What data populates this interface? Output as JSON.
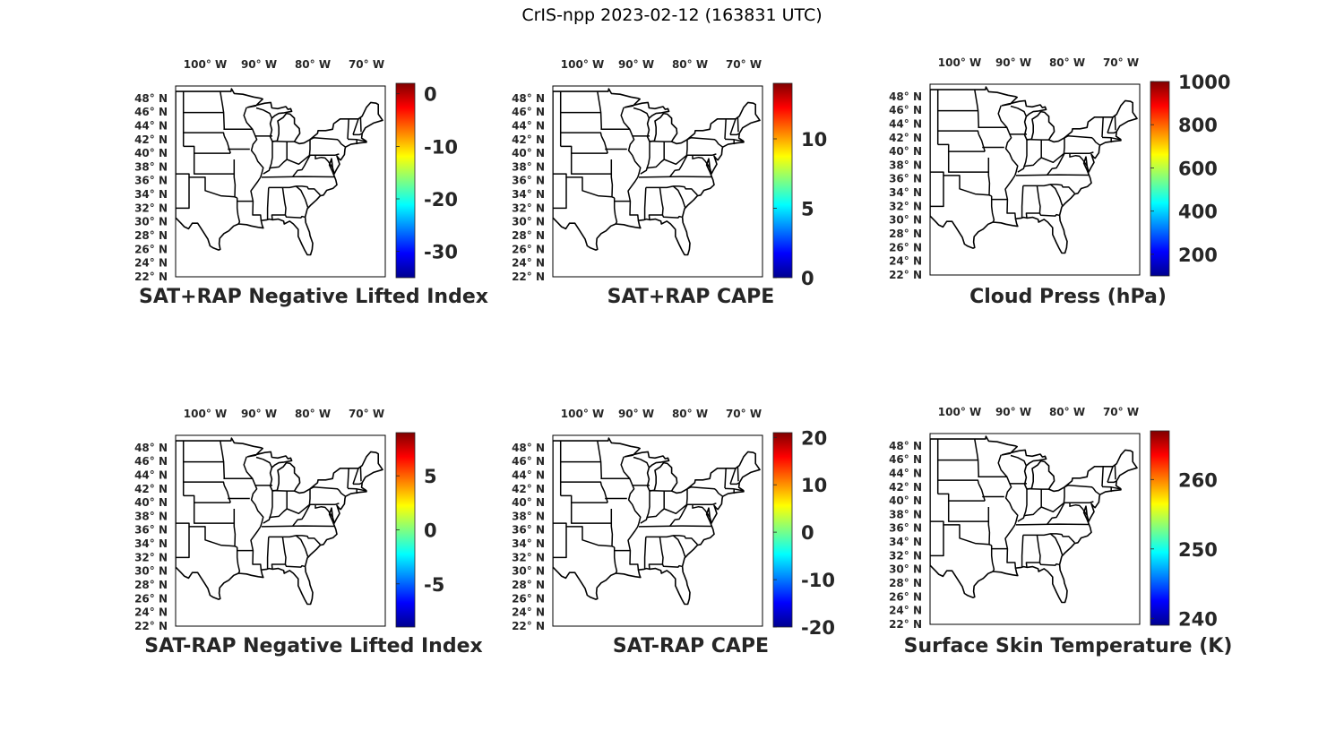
{
  "title": "CrIS-npp 2023-02-12 (163831 UTC)",
  "colormap": [
    "#00008f",
    "#0000ff",
    "#0080ff",
    "#00ffff",
    "#80ff80",
    "#ffff00",
    "#ff8000",
    "#ff0000",
    "#800000"
  ],
  "lon_labels": [
    "100",
    "90",
    "80",
    "70"
  ],
  "lon_suffix": "W",
  "lat_labels": [
    "48",
    "46",
    "44",
    "42",
    "40",
    "38",
    "36",
    "34",
    "32",
    "30",
    "28",
    "26",
    "24",
    "22"
  ],
  "lat_suffix": "N",
  "degree_mark": "°",
  "panels": [
    {
      "title": "SAT+RAP Negative Lifted Index",
      "colorbar": {
        "min": -35,
        "max": 2,
        "ticks": [
          "0",
          "-10",
          "-20",
          "-30"
        ],
        "tick_values": [
          0,
          -10,
          -20,
          -30
        ]
      }
    },
    {
      "title": "SAT+RAP CAPE",
      "colorbar": {
        "min": 0,
        "max": 14,
        "ticks": [
          "10",
          "5",
          "0"
        ],
        "tick_values": [
          10,
          5,
          0
        ]
      }
    },
    {
      "title": "Cloud Press (hPa)",
      "colorbar": {
        "min": 100,
        "max": 1000,
        "ticks": [
          "1000",
          "800",
          "600",
          "400",
          "200"
        ],
        "tick_values": [
          1000,
          800,
          600,
          400,
          200
        ]
      }
    },
    {
      "title": "SAT-RAP Negative Lifted Index",
      "colorbar": {
        "min": -9,
        "max": 9,
        "ticks": [
          "5",
          "0",
          "-5"
        ],
        "tick_values": [
          5,
          0,
          -5
        ]
      }
    },
    {
      "title": "SAT-RAP CAPE",
      "colorbar": {
        "min": -20,
        "max": 21,
        "ticks": [
          "20",
          "10",
          "0",
          "-10",
          "-20"
        ],
        "tick_values": [
          20,
          10,
          0,
          -10,
          -20
        ]
      }
    },
    {
      "title": "Surface Skin Temperature (K)",
      "colorbar": {
        "min": 239,
        "max": 267,
        "ticks": [
          "260",
          "250",
          "240"
        ],
        "tick_values": [
          260,
          250,
          240
        ]
      }
    }
  ]
}
